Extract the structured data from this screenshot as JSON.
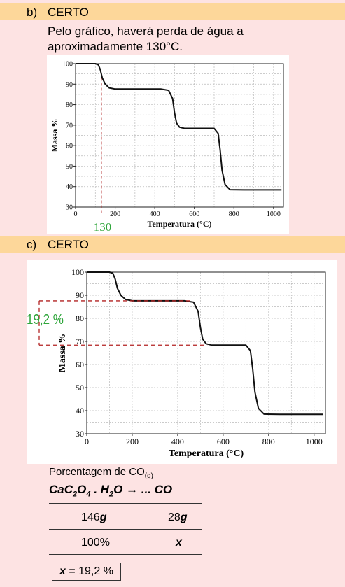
{
  "section_b": {
    "letter": "b)",
    "verdict": "CERTO",
    "line1": "Pelo gráfico, haverá perda de água a",
    "line2": "aproximadamente 130°C."
  },
  "section_c": {
    "letter": "c)",
    "verdict": "CERTO"
  },
  "chart_data": [
    {
      "type": "line",
      "xlabel": "Temperatura (°C)",
      "ylabel": "Massa %",
      "xlim": [
        0,
        1050
      ],
      "ylim": [
        30,
        100
      ],
      "xticks": [
        0,
        200,
        400,
        600,
        800,
        1000
      ],
      "yticks": [
        30,
        40,
        50,
        60,
        70,
        80,
        90,
        100
      ],
      "grid": true,
      "series": [
        {
          "x": [
            0,
            100,
            115,
            125,
            135,
            150,
            170,
            200,
            300,
            430,
            470,
            490,
            500,
            510,
            525,
            550,
            600,
            700,
            720,
            730,
            740,
            755,
            780,
            850,
            1000,
            1040
          ],
          "y": [
            100,
            100,
            99.5,
            97,
            93,
            90,
            88.2,
            87.6,
            87.6,
            87.6,
            87,
            83,
            76,
            71,
            69,
            68.4,
            68.4,
            68.4,
            66,
            58,
            48,
            41,
            38.5,
            38.4,
            38.4,
            38.4
          ]
        }
      ],
      "annotation": {
        "label": "130",
        "x": 130,
        "color": "#2ea53a"
      }
    },
    {
      "type": "line",
      "xlabel": "Temperatura (°C)",
      "ylabel": "Massa %",
      "xlim": [
        0,
        1050
      ],
      "ylim": [
        30,
        100
      ],
      "xticks": [
        0,
        200,
        400,
        600,
        800,
        1000
      ],
      "yticks": [
        30,
        40,
        50,
        60,
        70,
        80,
        90,
        100
      ],
      "grid": true,
      "series": [
        {
          "x": [
            0,
            100,
            115,
            125,
            135,
            150,
            170,
            200,
            300,
            430,
            470,
            490,
            500,
            510,
            525,
            550,
            600,
            700,
            720,
            730,
            740,
            755,
            780,
            850,
            1000,
            1040
          ],
          "y": [
            100,
            100,
            99.5,
            97,
            93,
            90,
            88.2,
            87.6,
            87.6,
            87.6,
            87,
            83,
            76,
            71,
            69,
            68.4,
            68.4,
            68.4,
            66,
            58,
            48,
            41,
            38.5,
            38.4,
            38.4,
            38.4
          ]
        }
      ],
      "annotation": {
        "label": "19,2 %",
        "y_top": 87.6,
        "y_bottom": 68.4,
        "color": "#2ea53a"
      }
    }
  ],
  "calculation": {
    "title_main": "Porcentagem de CO",
    "title_sub": "(g)",
    "eq_a": "CaC",
    "eq_a_sub": "2",
    "eq_b": "O",
    "eq_b_sub": "4",
    "eq_c": " . H",
    "eq_c_sub": "2",
    "eq_d": "O → ... CO",
    "r1_left_num": "146",
    "r1_left_unit": "g",
    "r1_right_num": "28",
    "r1_right_unit": "g",
    "r2_left": "100%",
    "r2_right": "x",
    "answer_var": "x",
    "answer_rest": " = 19,2 %"
  }
}
